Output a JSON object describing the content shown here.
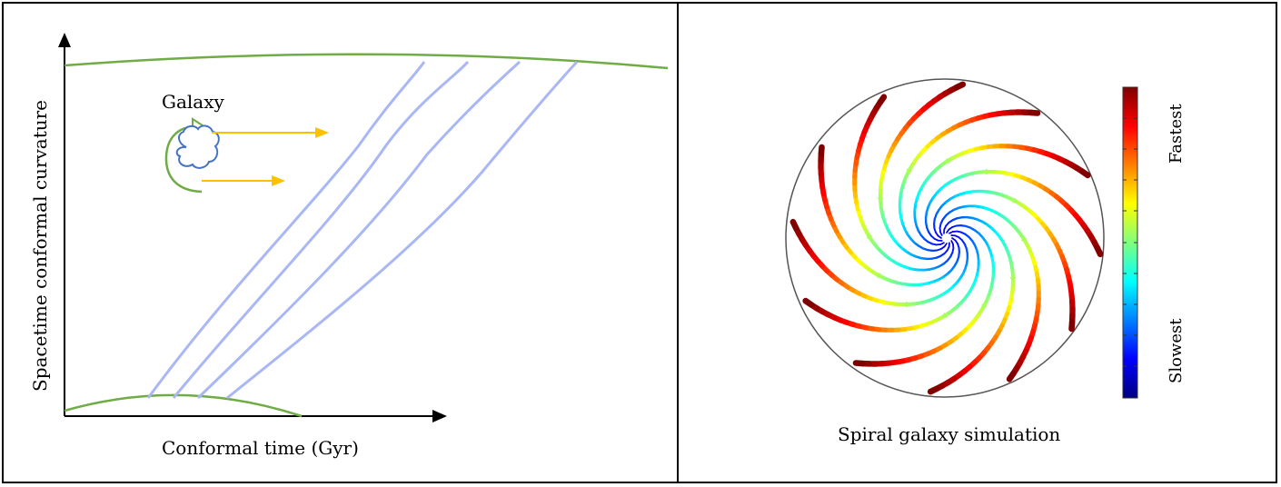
{
  "left_panel": {
    "y_axis_label": "Spacetime conformal curvature",
    "x_axis_label": "Conformal time (Gyr)",
    "galaxy_label": "Galaxy",
    "colors": {
      "curve": "#6fac46",
      "arrow": "#ffc000",
      "worldline": "#a9b8f5",
      "cloud": "#4472c4"
    }
  },
  "right_panel": {
    "caption": "Spiral galaxy simulation",
    "colorbar": {
      "high_label": "Fastest",
      "low_label": "Slowest"
    }
  }
}
